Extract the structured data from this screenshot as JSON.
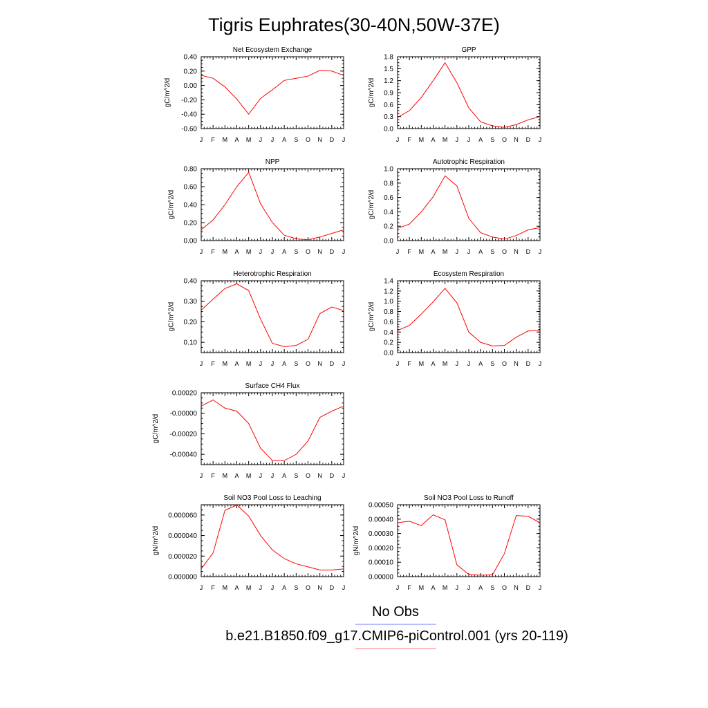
{
  "title": "Tigris Euphrates(30-40N,50W-37E)",
  "colors": {
    "model": "#ff0000",
    "obs": "#0000ff"
  },
  "legend": [
    {
      "label": "No Obs",
      "color": "#0000ff"
    },
    {
      "label": "b.e21.B1850.f09_g17.CMIP6-piControl.001 (yrs 20-119)",
      "color": "#ff0000"
    }
  ],
  "chart_data": [
    {
      "type": "line",
      "title": "Net Ecosystem Exchange",
      "ylabel": "gC/m^2/d",
      "x": [
        "J",
        "F",
        "M",
        "A",
        "M",
        "J",
        "J",
        "A",
        "S",
        "O",
        "N",
        "D",
        "J"
      ],
      "ylim": [
        -0.6,
        0.4
      ],
      "yticks": [
        "0.40",
        "0.20",
        "0.00",
        "-0.20",
        "-0.40",
        "-0.60"
      ],
      "series": [
        {
          "values": [
            0.14,
            0.1,
            -0.02,
            -0.19,
            -0.4,
            -0.18,
            -0.06,
            0.07,
            0.1,
            0.13,
            0.21,
            0.2,
            0.14
          ]
        }
      ]
    },
    {
      "type": "line",
      "title": "GPP",
      "ylabel": "gC/m^2/d",
      "x": [
        "J",
        "F",
        "M",
        "A",
        "M",
        "J",
        "J",
        "A",
        "S",
        "O",
        "N",
        "D",
        "J"
      ],
      "ylim": [
        0.0,
        1.8
      ],
      "yticks": [
        "1.8",
        "1.5",
        "1.2",
        "0.9",
        "0.6",
        "0.3",
        "0.0"
      ],
      "series": [
        {
          "values": [
            0.28,
            0.45,
            0.78,
            1.2,
            1.65,
            1.15,
            0.52,
            0.17,
            0.07,
            0.03,
            0.1,
            0.22,
            0.3
          ]
        }
      ]
    },
    {
      "type": "line",
      "title": "NPP",
      "ylabel": "gC/m^2/d",
      "x": [
        "J",
        "F",
        "M",
        "A",
        "M",
        "J",
        "J",
        "A",
        "S",
        "O",
        "N",
        "D",
        "J"
      ],
      "ylim": [
        0.0,
        0.8
      ],
      "yticks": [
        "0.80",
        "0.60",
        "0.40",
        "0.20",
        "0.00"
      ],
      "series": [
        {
          "values": [
            0.12,
            0.23,
            0.4,
            0.6,
            0.76,
            0.41,
            0.2,
            0.06,
            0.02,
            0.01,
            0.04,
            0.08,
            0.12
          ]
        }
      ]
    },
    {
      "type": "line",
      "title": "Autotrophic Respiration",
      "ylabel": "gC/m^2/d",
      "x": [
        "J",
        "F",
        "M",
        "A",
        "M",
        "J",
        "J",
        "A",
        "S",
        "O",
        "N",
        "D",
        "J"
      ],
      "ylim": [
        0.0,
        1.0
      ],
      "yticks": [
        "1.0",
        "0.8",
        "0.6",
        "0.4",
        "0.2",
        "0.0"
      ],
      "series": [
        {
          "values": [
            0.17,
            0.23,
            0.4,
            0.61,
            0.9,
            0.76,
            0.31,
            0.11,
            0.05,
            0.02,
            0.07,
            0.15,
            0.18
          ]
        }
      ]
    },
    {
      "type": "line",
      "title": "Heterotrophic Respiration",
      "ylabel": "gC/m^2/d",
      "x": [
        "J",
        "F",
        "M",
        "A",
        "M",
        "J",
        "J",
        "A",
        "S",
        "O",
        "N",
        "D",
        "J"
      ],
      "ylim": [
        0.05,
        0.4
      ],
      "yticks": [
        "0.40",
        "0.30",
        "0.20",
        "0.10"
      ],
      "series": [
        {
          "values": [
            0.257,
            0.31,
            0.362,
            0.385,
            0.352,
            0.213,
            0.095,
            0.079,
            0.085,
            0.115,
            0.24,
            0.272,
            0.255
          ]
        }
      ]
    },
    {
      "type": "line",
      "title": "Ecosystem Respiration",
      "ylabel": "gC/m^2/d",
      "x": [
        "J",
        "F",
        "M",
        "A",
        "M",
        "J",
        "J",
        "A",
        "S",
        "O",
        "N",
        "D",
        "J"
      ],
      "ylim": [
        0.0,
        1.4
      ],
      "yticks": [
        "1.4",
        "1.2",
        "1.0",
        "0.8",
        "0.6",
        "0.4",
        "0.2",
        "0.0"
      ],
      "series": [
        {
          "values": [
            0.43,
            0.53,
            0.75,
            0.99,
            1.25,
            0.97,
            0.4,
            0.2,
            0.13,
            0.14,
            0.3,
            0.42,
            0.43
          ]
        }
      ]
    },
    {
      "type": "line",
      "title": "Surface CH4 Flux",
      "ylabel": "gC/m^2/d",
      "x": [
        "J",
        "F",
        "M",
        "A",
        "M",
        "J",
        "J",
        "A",
        "S",
        "O",
        "N",
        "D",
        "J"
      ],
      "ylim": [
        -0.0005,
        0.0002
      ],
      "yticks": [
        "0.00020",
        "-0.00000",
        "-0.00020",
        "-0.00040"
      ],
      "series": [
        {
          "values": [
            7e-05,
            0.00013,
            5e-05,
            2e-05,
            -0.0001,
            -0.00034,
            -0.00046,
            -0.00046,
            -0.0004,
            -0.00027,
            -4e-05,
            2e-05,
            7e-05
          ]
        }
      ]
    },
    {
      "type": "line",
      "title": "Soil NO3 Pool Loss to Leaching",
      "ylabel": "gN/m^2/d",
      "x": [
        "J",
        "F",
        "M",
        "A",
        "M",
        "J",
        "J",
        "A",
        "S",
        "O",
        "N",
        "D",
        "J"
      ],
      "ylim": [
        0.0,
        7e-05
      ],
      "yticks": [
        "0.000060",
        "0.000040",
        "0.000020",
        "0.000000"
      ],
      "series": [
        {
          "values": [
            7.5e-06,
            2.3e-05,
            6.45e-05,
            6.97e-05,
            5.9e-05,
            4e-05,
            2.6e-05,
            1.75e-05,
            1.25e-05,
            9.5e-06,
            6.5e-06,
            6.5e-06,
            7.5e-06
          ]
        }
      ]
    },
    {
      "type": "line",
      "title": "Soil NO3 Pool Loss to Runoff",
      "ylabel": "gN/m^2/d",
      "x": [
        "J",
        "F",
        "M",
        "A",
        "M",
        "J",
        "J",
        "A",
        "S",
        "O",
        "N",
        "D",
        "J"
      ],
      "ylim": [
        0.0,
        0.0005
      ],
      "yticks": [
        "0.00050",
        "0.00040",
        "0.00030",
        "0.00020",
        "0.00010",
        "0.00000"
      ],
      "series": [
        {
          "values": [
            0.000375,
            0.000385,
            0.000355,
            0.00043,
            0.000395,
            8.2e-05,
            1.5e-05,
            1e-05,
            1.3e-05,
            0.00016,
            0.000425,
            0.00042,
            0.000375
          ]
        }
      ]
    }
  ]
}
